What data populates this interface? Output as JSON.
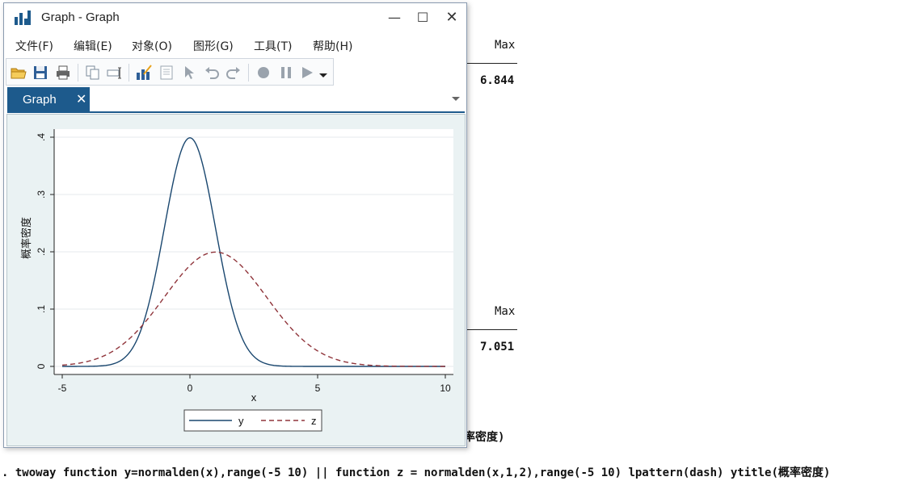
{
  "results": {
    "max_header_1": "Max",
    "max_value_1": "6.844",
    "max_header_2": "Max",
    "max_value_2": "7.051",
    "truncated_text": "率密度)",
    "command_line": ". twoway function y=normalden(x),range(-5 10) || function z = normalden(x,1,2),range(-5 10) lpattern(dash) ytitle(概率密度)"
  },
  "window": {
    "title": "Graph - Graph",
    "app_icon": "stata-graph-icon",
    "controls": {
      "minimize": "—",
      "maximize": "☐",
      "close": "✕"
    }
  },
  "menu": {
    "items": [
      "文件(F)",
      "编辑(E)",
      "对象(O)",
      "图形(G)",
      "工具(T)",
      "帮助(H)"
    ]
  },
  "toolbar": {
    "icons": [
      "open-folder-icon",
      "save-icon",
      "print-icon",
      "copy-graph-icon",
      "rename-icon",
      "graph-editor-icon",
      "properties-icon",
      "select-pointer-icon",
      "undo-icon",
      "redo-icon",
      "record-icon",
      "pause-icon",
      "play-icon",
      "dropdown-arrow-icon"
    ]
  },
  "tabs": {
    "active_label": "Graph",
    "close_glyph": "✕"
  },
  "chart_data": {
    "type": "line",
    "xlabel": "x",
    "ylabel": "概率密度",
    "xlim": [
      -5,
      10
    ],
    "ylim": [
      0,
      0.4
    ],
    "x_ticks": [
      -5,
      0,
      5,
      10
    ],
    "x_tick_labels": [
      "-5",
      "0",
      "5",
      "10"
    ],
    "y_ticks": [
      0,
      0.1,
      0.2,
      0.3,
      0.4
    ],
    "y_tick_labels": [
      "0",
      ".1",
      ".2",
      ".3",
      ".4"
    ],
    "grid": true,
    "legend_position": "bottom",
    "series": [
      {
        "name": "y",
        "function": "normalden(x)",
        "mean": 0,
        "sd": 1,
        "style": "solid",
        "color": "#1a476f"
      },
      {
        "name": "z",
        "function": "normalden(x,1,2)",
        "mean": 1,
        "sd": 2,
        "style": "dash",
        "color": "#90353b"
      }
    ]
  }
}
